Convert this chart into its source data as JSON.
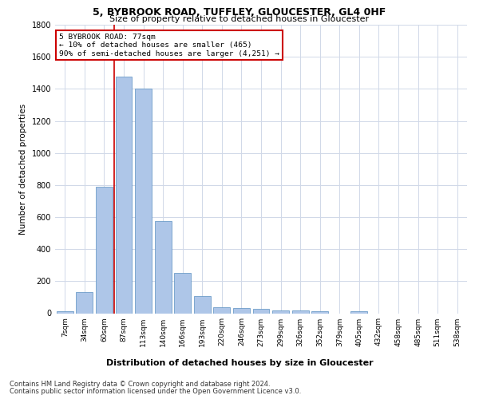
{
  "title1": "5, BYBROOK ROAD, TUFFLEY, GLOUCESTER, GL4 0HF",
  "title2": "Size of property relative to detached houses in Gloucester",
  "xlabel": "Distribution of detached houses by size in Gloucester",
  "ylabel": "Number of detached properties",
  "categories": [
    "7sqm",
    "34sqm",
    "60sqm",
    "87sqm",
    "113sqm",
    "140sqm",
    "166sqm",
    "193sqm",
    "220sqm",
    "246sqm",
    "273sqm",
    "299sqm",
    "326sqm",
    "352sqm",
    "379sqm",
    "405sqm",
    "432sqm",
    "458sqm",
    "485sqm",
    "511sqm",
    "538sqm"
  ],
  "values": [
    10,
    130,
    790,
    1475,
    1400,
    575,
    250,
    105,
    35,
    30,
    25,
    15,
    15,
    10,
    0,
    10,
    0,
    0,
    0,
    0,
    0
  ],
  "bar_color": "#aec6e8",
  "bar_edge_color": "#5a8fc0",
  "vline_x": 2.5,
  "vline_color": "#cc0000",
  "annotation_text": "5 BYBROOK ROAD: 77sqm\n← 10% of detached houses are smaller (465)\n90% of semi-detached houses are larger (4,251) →",
  "annotation_box_color": "#ffffff",
  "annotation_box_edge_color": "#cc0000",
  "ylim": [
    0,
    1800
  ],
  "yticks": [
    0,
    200,
    400,
    600,
    800,
    1000,
    1200,
    1400,
    1600,
    1800
  ],
  "footer1": "Contains HM Land Registry data © Crown copyright and database right 2024.",
  "footer2": "Contains public sector information licensed under the Open Government Licence v3.0.",
  "background_color": "#ffffff",
  "grid_color": "#d0d8e8"
}
